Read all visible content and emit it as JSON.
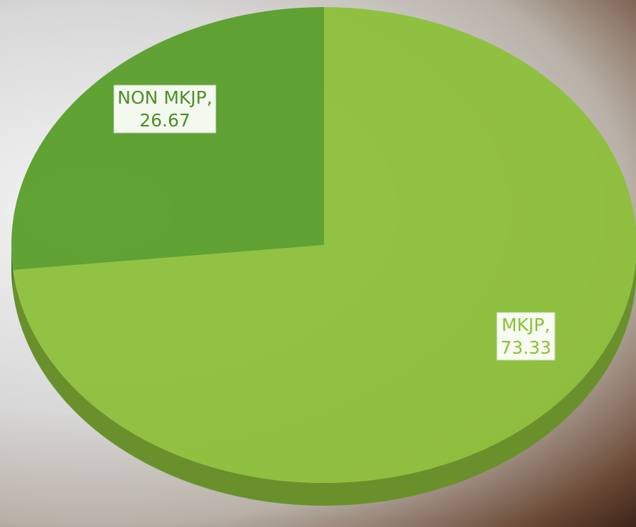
{
  "chart_data": {
    "type": "pie",
    "categories": [
      "MKJP,",
      "NON MKJP,"
    ],
    "values": [
      73.33,
      26.67
    ],
    "colors": [
      "#8dc03a",
      "#5a9e2a"
    ],
    "label_colors": [
      "#8dc03a",
      "#4e8f24"
    ]
  }
}
